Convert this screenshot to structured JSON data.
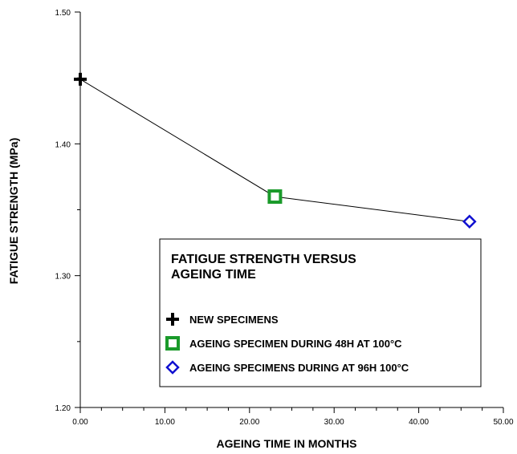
{
  "chart_data": {
    "type": "line",
    "xlabel": "AGEING TIME IN MONTHS",
    "ylabel": "FATIGUE STRENGTH (MPa)",
    "xlim": [
      0,
      50
    ],
    "ylim": [
      1.2,
      1.5
    ],
    "x_ticks": [
      "0.00",
      "10.00",
      "20.00",
      "30.00",
      "40.00",
      "50.00"
    ],
    "y_ticks": [
      "1.20",
      "1.30",
      "1.40",
      "1.50"
    ],
    "x_minor_step": 2.5,
    "y_minor_step": 0.05,
    "grid": false,
    "line_color": "#000000",
    "series": [
      {
        "name": "NEW SPECIMENS",
        "marker": "plus",
        "color": "#000000",
        "x": 0,
        "y": 1.449
      },
      {
        "name": "AGEING SPECIMEN DURING 48H AT 100°C",
        "marker": "square",
        "color": "#1a9a2a",
        "x": 23,
        "y": 1.36
      },
      {
        "name": "AGEING SPECIMENS DURING AT 96H 100°C",
        "marker": "diamond",
        "color": "#1010d0",
        "x": 46,
        "y": 1.341
      }
    ],
    "legend": {
      "title_lines": [
        "FATIGUE STRENGTH VERSUS",
        "AGEING TIME"
      ],
      "placement": "center-right"
    }
  }
}
